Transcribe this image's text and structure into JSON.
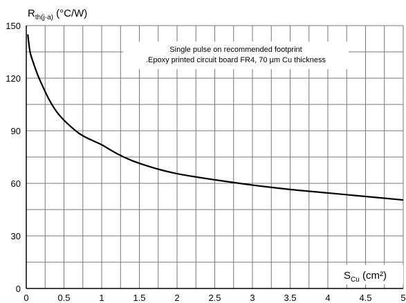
{
  "chart_data": {
    "type": "line",
    "y_label": {
      "main": "R",
      "sub": "th(j-a)",
      "unit": " (°C/W)"
    },
    "x_label": {
      "main": "S",
      "sub": "Cu",
      "unit": " (cm²)"
    },
    "annotation": [
      "Single pulse on recommended footprint",
      ".Epoxy printed circuit board FR4, 70 µm Cu thickness"
    ],
    "x_ticks": [
      0,
      0.5,
      1,
      1.5,
      2,
      2.5,
      3,
      3.5,
      4,
      4.5,
      5
    ],
    "y_ticks": [
      0,
      30,
      60,
      90,
      120,
      150
    ],
    "xlim": [
      0,
      5
    ],
    "ylim": [
      0,
      150
    ],
    "grid": true,
    "minor_grid_x_step": 0.25,
    "minor_grid_y_step": 15,
    "series": [
      {
        "x": [
          0.02,
          0.05,
          0.1,
          0.15,
          0.2,
          0.3,
          0.4,
          0.5,
          0.6,
          0.7,
          0.8,
          0.9,
          1.0,
          1.2,
          1.4,
          1.6,
          1.8,
          2.0,
          2.2,
          2.5,
          3.0,
          3.5,
          4.0,
          4.5,
          5.0
        ],
        "y": [
          145,
          135,
          128,
          122,
          117,
          108,
          101,
          96,
          92,
          88.5,
          86,
          84,
          82,
          77,
          73,
          70,
          67.5,
          65.5,
          64,
          62,
          59,
          56.5,
          54.5,
          52.5,
          50.5
        ]
      }
    ],
    "colors": {
      "curve": "#000000",
      "grid": "#777777",
      "axis": "#000000"
    }
  }
}
